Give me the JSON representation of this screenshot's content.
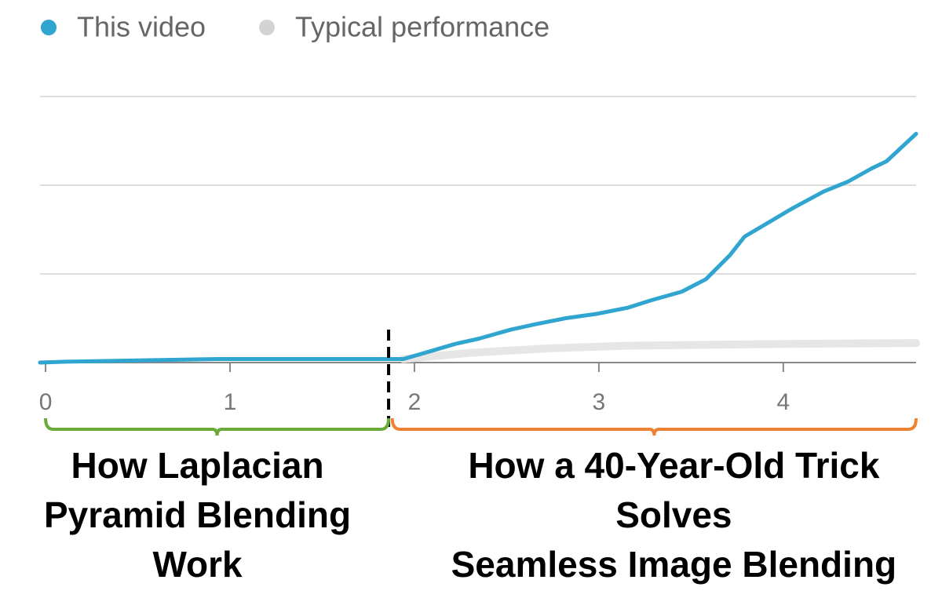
{
  "chart_data": {
    "type": "line",
    "xlim": [
      -0.03,
      4.72
    ],
    "xticks": [
      0,
      1,
      2,
      3,
      4
    ],
    "ylim": [
      0,
      3
    ],
    "ygrid": [
      0,
      1,
      2,
      3
    ],
    "series": [
      {
        "name": "This video",
        "color": "#2fa5d0",
        "x": [
          -0.03,
          0.11,
          0.94,
          0.99,
          1.94,
          2.09,
          2.22,
          2.35,
          2.52,
          2.65,
          2.82,
          2.99,
          3.16,
          3.28,
          3.45,
          3.58,
          3.71,
          3.79,
          3.92,
          4.05,
          4.22,
          4.35,
          4.48,
          4.56,
          4.72
        ],
        "values": [
          0,
          0.01,
          0.04,
          0.04,
          0.04,
          0.13,
          0.21,
          0.27,
          0.37,
          0.43,
          0.5,
          0.55,
          0.62,
          0.7,
          0.8,
          0.94,
          1.21,
          1.42,
          1.58,
          1.74,
          1.93,
          2.04,
          2.19,
          2.27,
          2.58
        ]
      },
      {
        "name": "Typical performance",
        "color": "#e6e6e6",
        "x": [
          1.94,
          2.3,
          2.73,
          3.16,
          4.01,
          4.72
        ],
        "values": [
          0.04,
          0.11,
          0.16,
          0.19,
          0.21,
          0.22
        ]
      }
    ],
    "divider_x": 1.86,
    "annotations": [
      {
        "lines": [
          "How Laplacian",
          "Pyramid Blending",
          "Work"
        ],
        "color": "#6aaa3a",
        "x_from": 0,
        "x_to": 1.86
      },
      {
        "lines": [
          "How a 40-Year-Old Trick",
          "Solves",
          "Seamless Image Blending"
        ],
        "color": "#ee8233",
        "x_from": 1.88,
        "x_to": 4.72
      }
    ]
  }
}
